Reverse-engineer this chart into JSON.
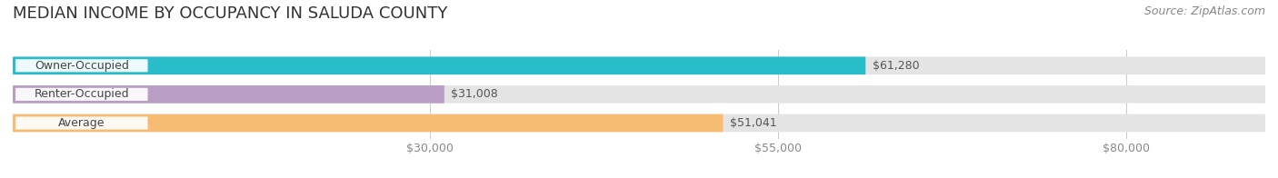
{
  "title": "MEDIAN INCOME BY OCCUPANCY IN SALUDA COUNTY",
  "source": "Source: ZipAtlas.com",
  "categories": [
    "Owner-Occupied",
    "Renter-Occupied",
    "Average"
  ],
  "values": [
    61280,
    31008,
    51041
  ],
  "labels": [
    "$61,280",
    "$31,008",
    "$51,041"
  ],
  "bar_colors": [
    "#29bcc9",
    "#b89ec4",
    "#f5bc72"
  ],
  "bar_bg_color": "#e4e4e4",
  "background_color": "#ffffff",
  "xlim": [
    0,
    90000
  ],
  "xmin": 0,
  "xmax": 90000,
  "xticks": [
    30000,
    55000,
    80000
  ],
  "xtick_labels": [
    "$30,000",
    "$55,000",
    "$80,000"
  ],
  "title_fontsize": 13,
  "source_fontsize": 9,
  "label_fontsize": 9,
  "cat_fontsize": 9,
  "bar_height": 0.62,
  "figsize": [
    14.06,
    1.96
  ],
  "dpi": 100
}
